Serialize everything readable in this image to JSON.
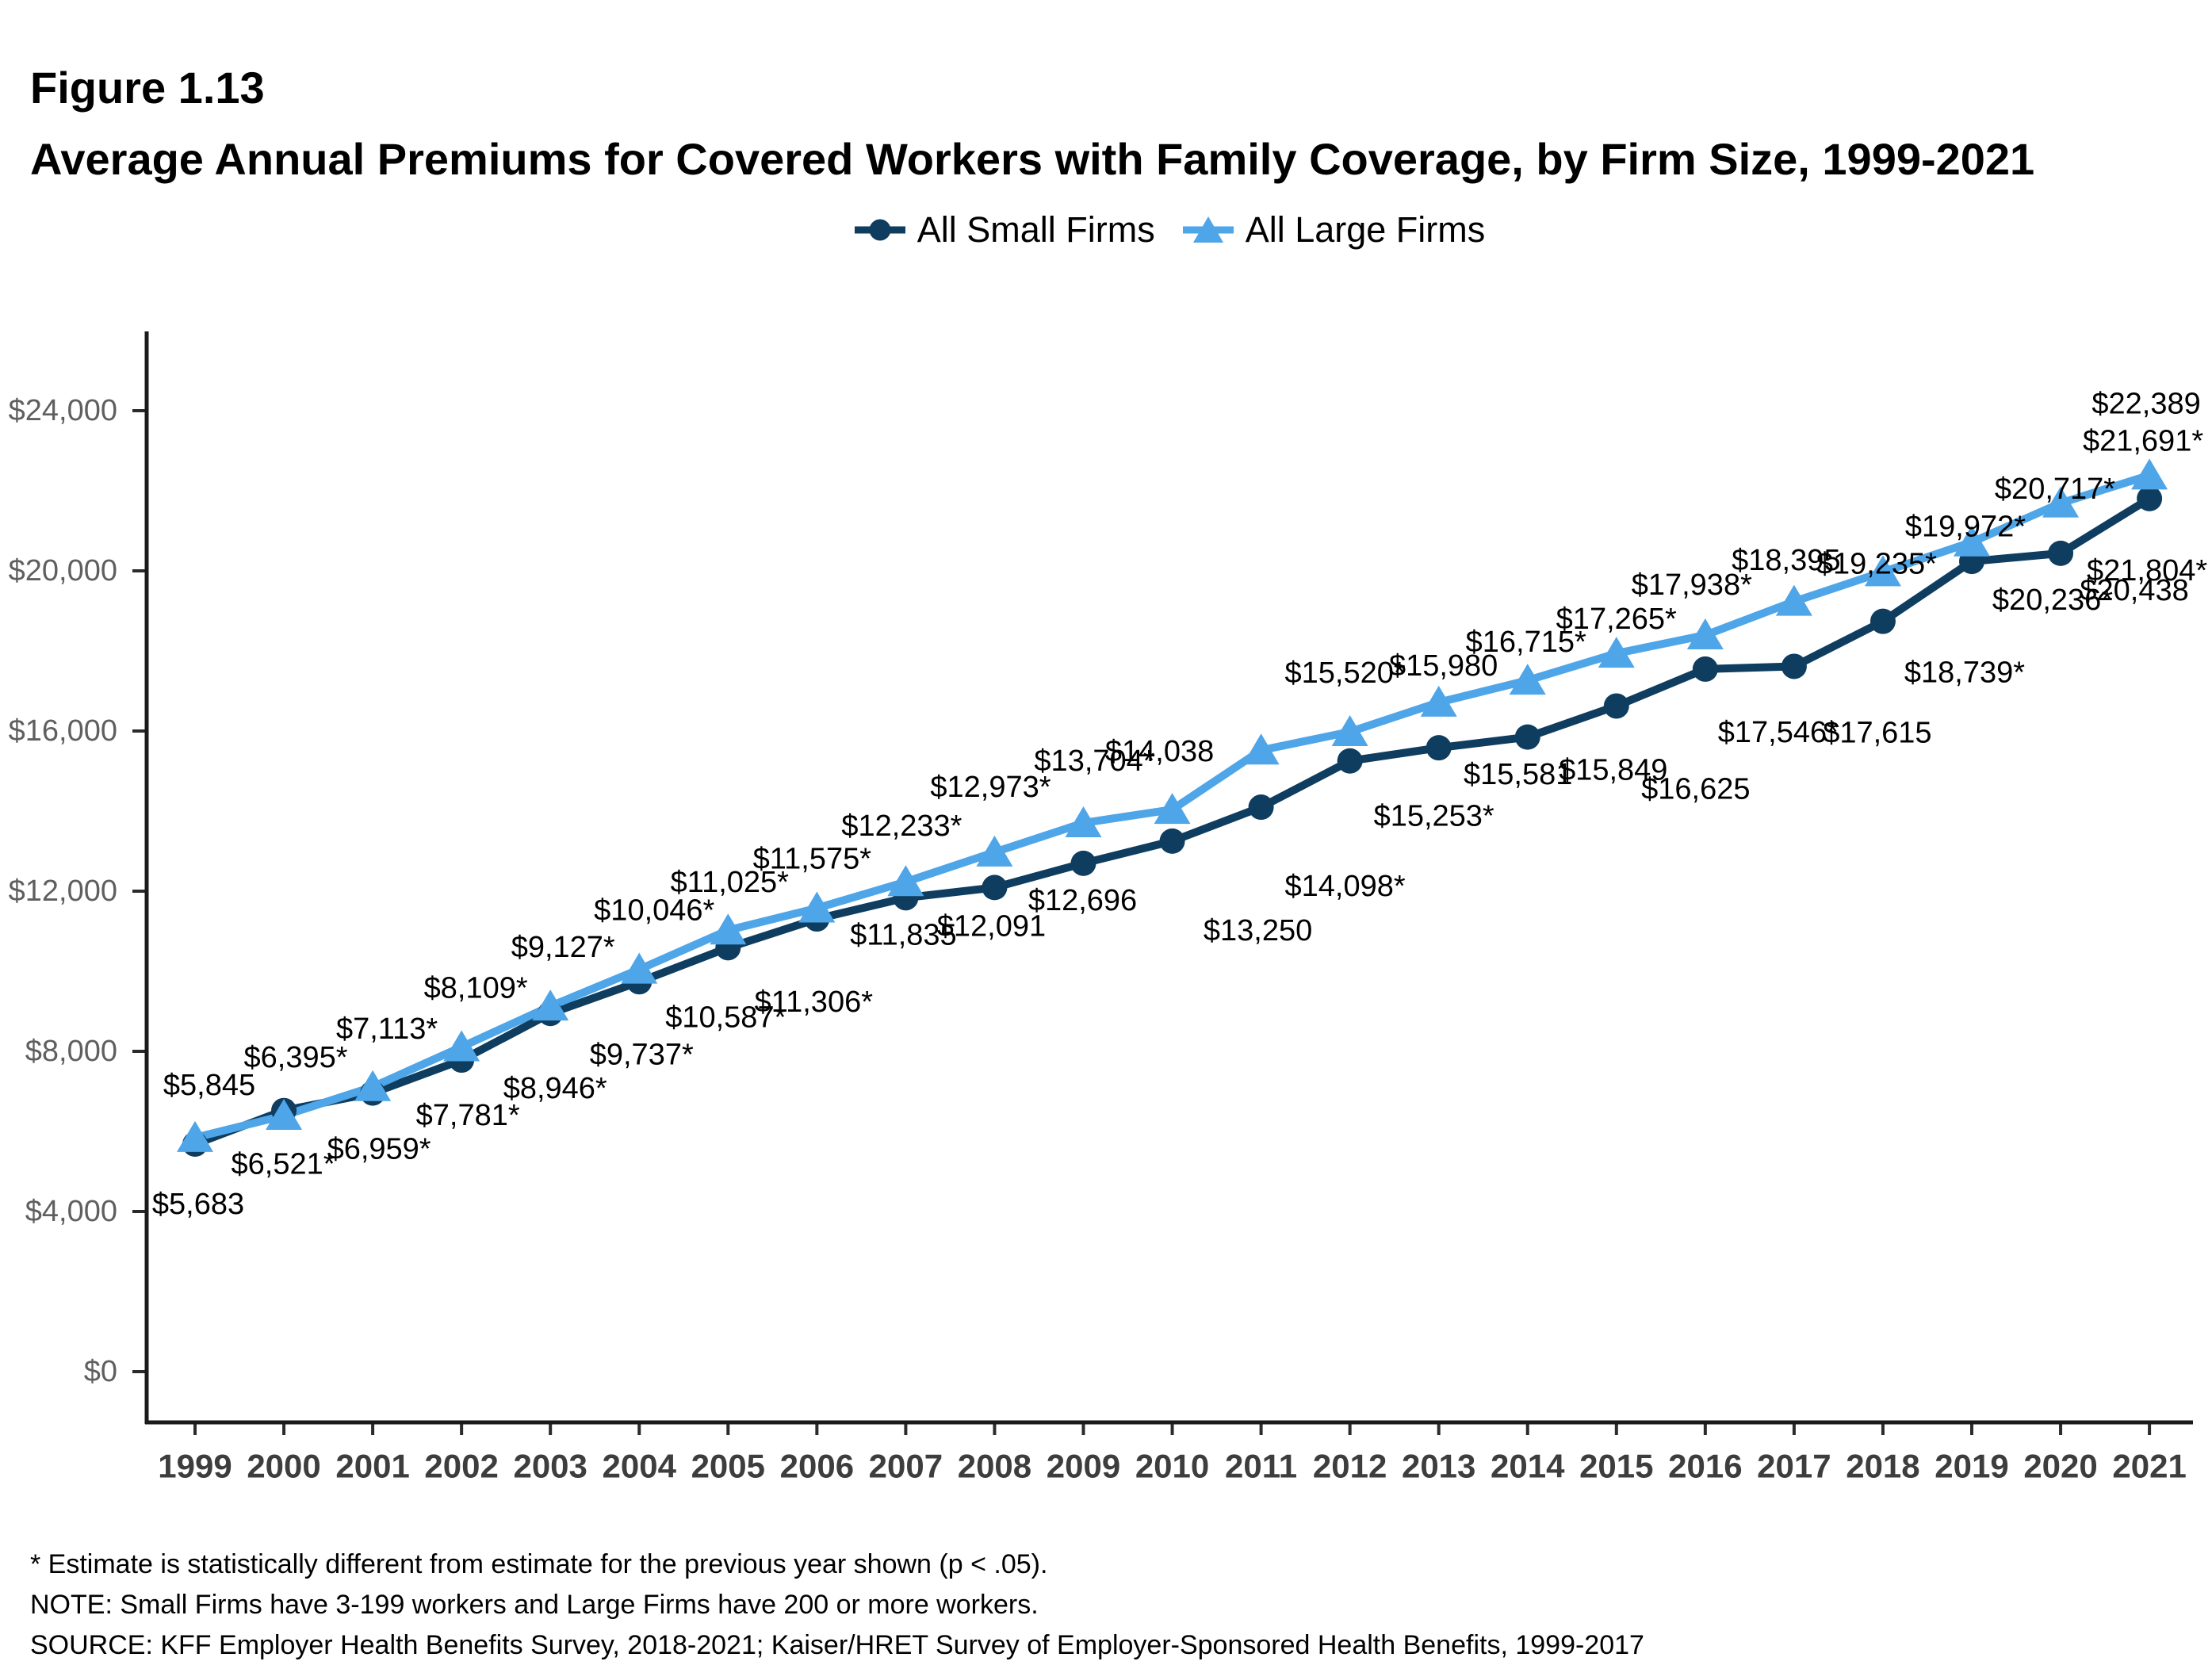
{
  "figure_label": "Figure 1.13",
  "title": "Average Annual Premiums for Covered Workers with Family Coverage, by Firm Size, 1999-2021",
  "legend": {
    "items": [
      {
        "label": "All Small Firms",
        "marker": "circle",
        "color": "#0E3D5F"
      },
      {
        "label": "All Large Firms",
        "marker": "triangle",
        "color": "#4EA5E8"
      }
    ]
  },
  "chart_data": {
    "type": "line",
    "title": "Average Annual Premiums for Covered Workers with Family Coverage, by Firm Size, 1999-2021",
    "x": [
      1999,
      2000,
      2001,
      2002,
      2003,
      2004,
      2005,
      2006,
      2007,
      2008,
      2009,
      2010,
      2011,
      2012,
      2013,
      2014,
      2015,
      2016,
      2017,
      2018,
      2019,
      2020,
      2021
    ],
    "series": [
      {
        "name": "All Small Firms",
        "color": "#0E3D5F",
        "marker": "circle",
        "values": [
          5683,
          6521,
          6959,
          7781,
          8946,
          9737,
          10587,
          11306,
          11835,
          12091,
          12696,
          13250,
          14098,
          15253,
          15581,
          15849,
          16625,
          17546,
          17615,
          18739,
          20236,
          20438,
          21804
        ],
        "labels": [
          "$5,683",
          "$6,521*",
          "$6,959*",
          "$7,781*",
          "$8,946*",
          "$9,737*",
          "$10,587*",
          "$11,306*",
          "$11,835",
          "$12,091",
          "$12,696",
          "$13,250",
          "$14,098*",
          "$15,253*",
          "$15,581",
          "$15,849",
          "$16,625",
          "$17,546*",
          "$17,615",
          "$18,739*",
          "$20,236*",
          "$20,438",
          "$21,804*"
        ]
      },
      {
        "name": "All Large Firms",
        "color": "#4EA5E8",
        "marker": "triangle",
        "values": [
          5845,
          6395,
          7113,
          8109,
          9127,
          10046,
          11025,
          11575,
          12233,
          12973,
          13704,
          14038,
          15520,
          15980,
          16715,
          17265,
          17938,
          18395,
          19235,
          19972,
          20717,
          21691,
          22389
        ],
        "labels": [
          "$5,845",
          "$6,395*",
          "$7,113*",
          "$8,109*",
          "$9,127*",
          "$10,046*",
          "$11,025*",
          "$11,575*",
          "$12,233*",
          "$12,973*",
          "$13,704*",
          "$14,038",
          "$15,520*",
          "$15,980",
          "$16,715*",
          "$17,265*",
          "$17,938*",
          "$18,395",
          "$19,235*",
          "$19,972*",
          "$20,717*",
          "$21,691*",
          "$22,389"
        ]
      }
    ],
    "xlabel": "",
    "ylabel": "",
    "y_ticks": [
      {
        "value": 0,
        "label": "$0"
      },
      {
        "value": 4000,
        "label": "$4,000"
      },
      {
        "value": 8000,
        "label": "$8,000"
      },
      {
        "value": 12000,
        "label": "$12,000"
      },
      {
        "value": 16000,
        "label": "$16,000"
      },
      {
        "value": 20000,
        "label": "$20,000"
      },
      {
        "value": 24000,
        "label": "$24,000"
      }
    ],
    "ylim": [
      0,
      25400
    ],
    "grid": false,
    "legend_position": "top"
  },
  "footnotes": [
    "* Estimate is statistically different from estimate for the previous year shown (p < .05).",
    "NOTE: Small Firms have 3-199 workers and Large Firms have 200 or more workers.",
    "SOURCE: KFF Employer Health Benefits Survey, 2018-2021; Kaiser/HRET Survey of Employer-Sponsored Health Benefits, 1999-2017"
  ]
}
